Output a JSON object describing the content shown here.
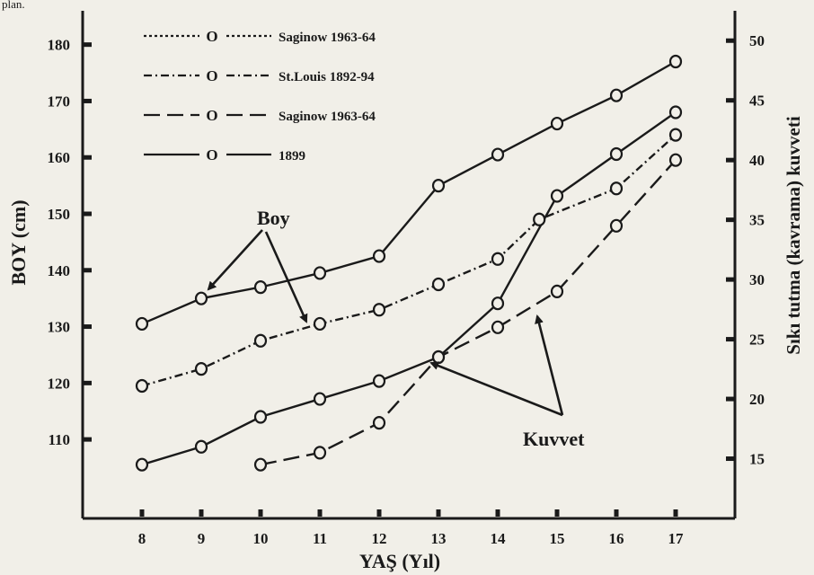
{
  "corner_text": "plan.",
  "chart_data": {
    "type": "line",
    "xlabel": "YAŞ (Yıl)",
    "ylabel": "BOY (cm)",
    "y2label": "Sıkı tutma (kavrama) kuvveti",
    "xlim": [
      7.0,
      18.0
    ],
    "ylim": [
      96,
      186
    ],
    "y2lim": [
      10,
      52.5
    ],
    "x_ticks": [
      8,
      9,
      10,
      11,
      12,
      13,
      14,
      15,
      16,
      17
    ],
    "y_ticks": [
      110,
      120,
      130,
      140,
      150,
      160,
      170,
      180
    ],
    "y2_ticks": [
      15,
      20,
      25,
      30,
      35,
      40,
      45,
      50
    ],
    "grid": false,
    "legend_position": "top-left",
    "legend": [
      {
        "label": "Saginow 1963-64",
        "style": "dotted"
      },
      {
        "label": "St.Louis 1892-94",
        "style": "dashdot"
      },
      {
        "label": "Saginow 1963-64",
        "style": "dashed"
      },
      {
        "label": "1899",
        "style": "solid"
      }
    ],
    "series": [
      {
        "label": "1899",
        "group": "Boy",
        "axis": "left",
        "style": "solid",
        "x": [
          8,
          9,
          10,
          11,
          12,
          13,
          14,
          15,
          16,
          17
        ],
        "y": [
          130.5,
          135,
          137,
          139.5,
          142.5,
          155,
          160.5,
          166,
          171,
          177
        ]
      },
      {
        "label": "St.Louis 1892-94",
        "group": "Boy",
        "axis": "left",
        "style": "dashdot",
        "x": [
          8,
          9,
          10,
          11,
          12,
          13,
          14,
          14.7,
          16,
          17
        ],
        "y": [
          119.5,
          122.5,
          127.5,
          130.5,
          133,
          137.5,
          142,
          149,
          154.5,
          164
        ]
      },
      {
        "label": "1899",
        "group": "Kuvvet",
        "axis": "right",
        "style": "solid",
        "x": [
          8,
          9,
          10,
          11,
          12,
          13,
          14,
          15,
          16,
          17
        ],
        "y": [
          14.5,
          16,
          18.5,
          20,
          21.5,
          23.5,
          28,
          37,
          40.5,
          44
        ]
      },
      {
        "label": "Saginow 1963-64",
        "group": "Kuvvet",
        "axis": "right",
        "style": "dashed",
        "x": [
          10,
          11,
          12,
          13,
          14,
          15,
          16,
          17
        ],
        "y": [
          14.5,
          15.5,
          18,
          23.5,
          26,
          29,
          34.5,
          40
        ]
      }
    ],
    "annotations": [
      "Boy",
      "Kuvvet"
    ]
  }
}
